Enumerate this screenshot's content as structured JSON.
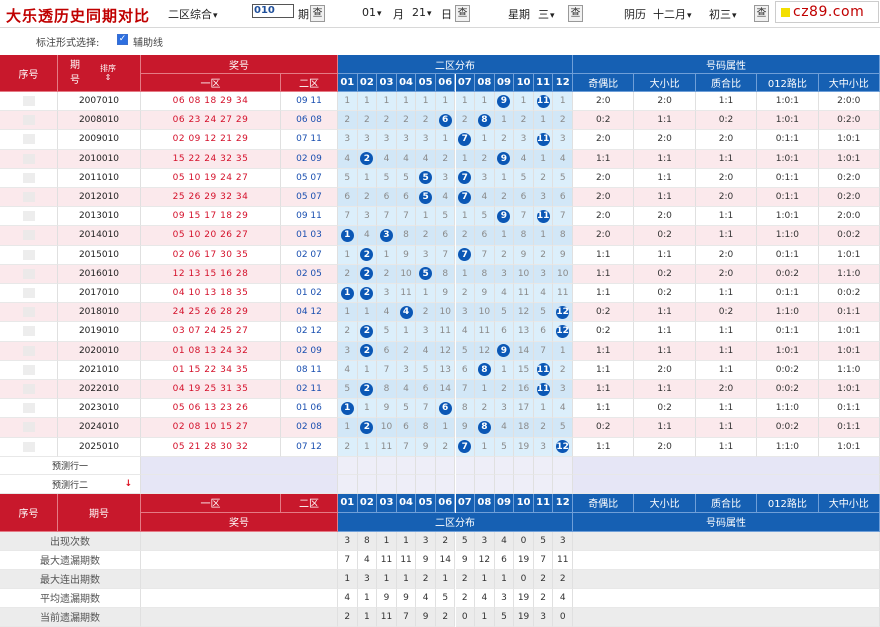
{
  "title": "大乐透历史同期对比",
  "toolbar": {
    "zone_select": "二区综合",
    "period_input": "010",
    "period_label": "期",
    "query_label": "查",
    "month_value": "01",
    "month_label": "月",
    "day_value": "21",
    "day_label": "日",
    "weekday_label": "星期",
    "weekday_value": "三",
    "lunar_label": "阴历",
    "lunar_month": "十二",
    "lunar_month_unit": "月",
    "lunar_day": "初三",
    "logo_text": "cz89.com"
  },
  "options": {
    "label": "标注形式选择:",
    "checkbox_label": "辅助线",
    "checked": true
  },
  "header": {
    "seq": "序号",
    "period": "期号",
    "sort": "排序",
    "prize": "奖号",
    "zone1": "一区",
    "zone2": "二区",
    "dist": "二区分布",
    "attr": "号码属性",
    "cols": [
      "01",
      "02",
      "03",
      "04",
      "05",
      "06",
      "07",
      "08",
      "09",
      "10",
      "11",
      "12"
    ],
    "attr_cols": [
      "奇偶比",
      "大小比",
      "质合比",
      "012路比",
      "大中小比"
    ]
  },
  "rows": [
    {
      "period": "2007010",
      "front": "06 08 18 29 34",
      "back": "09 11",
      "dist": [
        "1",
        "1",
        "1",
        "1",
        "1",
        "1",
        "1",
        "1",
        "9",
        "1",
        "11",
        "1"
      ],
      "hits": [
        9,
        11
      ],
      "attrs": [
        "2:0",
        "2:0",
        "1:1",
        "1:0:1",
        "2:0:0"
      ]
    },
    {
      "period": "2008010",
      "front": "06 23 24 27 29",
      "back": "06 08",
      "dist": [
        "2",
        "2",
        "2",
        "2",
        "2",
        "6",
        "2",
        "8",
        "1",
        "2",
        "1",
        "2"
      ],
      "hits": [
        6,
        8
      ],
      "attrs": [
        "0:2",
        "1:1",
        "0:2",
        "1:0:1",
        "0:2:0"
      ]
    },
    {
      "period": "2009010",
      "front": "02 09 12 21 29",
      "back": "07 11",
      "dist": [
        "3",
        "3",
        "3",
        "3",
        "3",
        "1",
        "7",
        "1",
        "2",
        "3",
        "11",
        "3"
      ],
      "hits": [
        7,
        11
      ],
      "attrs": [
        "2:0",
        "2:0",
        "2:0",
        "0:1:1",
        "1:0:1"
      ]
    },
    {
      "period": "2010010",
      "front": "15 22 24 32 35",
      "back": "02 09",
      "dist": [
        "4",
        "2",
        "4",
        "4",
        "4",
        "2",
        "1",
        "2",
        "9",
        "4",
        "1",
        "4"
      ],
      "hits": [
        2,
        9
      ],
      "attrs": [
        "1:1",
        "1:1",
        "1:1",
        "1:0:1",
        "1:0:1"
      ]
    },
    {
      "period": "2011010",
      "front": "05 10 19 24 27",
      "back": "05 07",
      "dist": [
        "5",
        "1",
        "5",
        "5",
        "5",
        "3",
        "7",
        "3",
        "1",
        "5",
        "2",
        "5"
      ],
      "hits": [
        5,
        7
      ],
      "attrs": [
        "2:0",
        "1:1",
        "2:0",
        "0:1:1",
        "0:2:0"
      ]
    },
    {
      "period": "2012010",
      "front": "25 26 29 32 34",
      "back": "05 07",
      "dist": [
        "6",
        "2",
        "6",
        "6",
        "5",
        "4",
        "7",
        "4",
        "2",
        "6",
        "3",
        "6"
      ],
      "hits": [
        5,
        7
      ],
      "attrs": [
        "2:0",
        "1:1",
        "2:0",
        "0:1:1",
        "0:2:0"
      ]
    },
    {
      "period": "2013010",
      "front": "09 15 17 18 29",
      "back": "09 11",
      "dist": [
        "7",
        "3",
        "7",
        "7",
        "1",
        "5",
        "1",
        "5",
        "9",
        "7",
        "11",
        "7"
      ],
      "hits": [
        9,
        11
      ],
      "attrs": [
        "2:0",
        "2:0",
        "1:1",
        "1:0:1",
        "2:0:0"
      ]
    },
    {
      "period": "2014010",
      "front": "05 10 20 26 27",
      "back": "01 03",
      "dist": [
        "1",
        "4",
        "3",
        "8",
        "2",
        "6",
        "2",
        "6",
        "1",
        "8",
        "1",
        "8"
      ],
      "hits": [
        1,
        3
      ],
      "attrs": [
        "2:0",
        "0:2",
        "1:1",
        "1:1:0",
        "0:0:2"
      ]
    },
    {
      "period": "2015010",
      "front": "02 06 17 30 35",
      "back": "02 07",
      "dist": [
        "1",
        "2",
        "1",
        "9",
        "3",
        "7",
        "7",
        "7",
        "2",
        "9",
        "2",
        "9"
      ],
      "hits": [
        2,
        7
      ],
      "attrs": [
        "1:1",
        "1:1",
        "2:0",
        "0:1:1",
        "1:0:1"
      ]
    },
    {
      "period": "2016010",
      "front": "12 13 15 16 28",
      "back": "02 05",
      "dist": [
        "2",
        "2",
        "2",
        "10",
        "5",
        "8",
        "1",
        "8",
        "3",
        "10",
        "3",
        "10"
      ],
      "hits": [
        2,
        5
      ],
      "attrs": [
        "1:1",
        "0:2",
        "2:0",
        "0:0:2",
        "1:1:0"
      ]
    },
    {
      "period": "2017010",
      "front": "04 10 13 18 35",
      "back": "01 02",
      "dist": [
        "1",
        "2",
        "3",
        "11",
        "1",
        "9",
        "2",
        "9",
        "4",
        "11",
        "4",
        "11"
      ],
      "hits": [
        1,
        2
      ],
      "attrs": [
        "1:1",
        "0:2",
        "1:1",
        "0:1:1",
        "0:0:2"
      ]
    },
    {
      "period": "2018010",
      "front": "24 25 26 28 29",
      "back": "04 12",
      "dist": [
        "1",
        "1",
        "4",
        "4",
        "2",
        "10",
        "3",
        "10",
        "5",
        "12",
        "5",
        "12"
      ],
      "hits": [
        4,
        12
      ],
      "attrs": [
        "0:2",
        "1:1",
        "0:2",
        "1:1:0",
        "0:1:1"
      ]
    },
    {
      "period": "2019010",
      "front": "03 07 24 25 27",
      "back": "02 12",
      "dist": [
        "2",
        "2",
        "5",
        "1",
        "3",
        "11",
        "4",
        "11",
        "6",
        "13",
        "6",
        "12"
      ],
      "hits": [
        2,
        12
      ],
      "attrs": [
        "0:2",
        "1:1",
        "1:1",
        "0:1:1",
        "1:0:1"
      ]
    },
    {
      "period": "2020010",
      "front": "01 08 13 24 32",
      "back": "02 09",
      "dist": [
        "3",
        "2",
        "6",
        "2",
        "4",
        "12",
        "5",
        "12",
        "9",
        "14",
        "7",
        "1"
      ],
      "hits": [
        2,
        9
      ],
      "attrs": [
        "1:1",
        "1:1",
        "1:1",
        "1:0:1",
        "1:0:1"
      ]
    },
    {
      "period": "2021010",
      "front": "01 15 22 34 35",
      "back": "08 11",
      "dist": [
        "4",
        "1",
        "7",
        "3",
        "5",
        "13",
        "6",
        "8",
        "1",
        "15",
        "11",
        "2"
      ],
      "hits": [
        8,
        11
      ],
      "attrs": [
        "1:1",
        "2:0",
        "1:1",
        "0:0:2",
        "1:1:0"
      ]
    },
    {
      "period": "2022010",
      "front": "04 19 25 31 35",
      "back": "02 11",
      "dist": [
        "5",
        "2",
        "8",
        "4",
        "6",
        "14",
        "7",
        "1",
        "2",
        "16",
        "11",
        "3"
      ],
      "hits": [
        2,
        11
      ],
      "attrs": [
        "1:1",
        "1:1",
        "2:0",
        "0:0:2",
        "1:0:1"
      ]
    },
    {
      "period": "2023010",
      "front": "05 06 13 23 26",
      "back": "01 06",
      "dist": [
        "1",
        "1",
        "9",
        "5",
        "7",
        "6",
        "8",
        "2",
        "3",
        "17",
        "1",
        "4"
      ],
      "hits": [
        1,
        6
      ],
      "attrs": [
        "1:1",
        "0:2",
        "1:1",
        "1:1:0",
        "0:1:1"
      ]
    },
    {
      "period": "2024010",
      "front": "02 08 10 15 27",
      "back": "02 08",
      "dist": [
        "1",
        "2",
        "10",
        "6",
        "8",
        "1",
        "9",
        "8",
        "4",
        "18",
        "2",
        "5"
      ],
      "hits": [
        2,
        8
      ],
      "attrs": [
        "0:2",
        "1:1",
        "1:1",
        "0:0:2",
        "0:1:1"
      ]
    },
    {
      "period": "2025010",
      "front": "05 21 28 30 32",
      "back": "07 12",
      "dist": [
        "2",
        "1",
        "11",
        "7",
        "9",
        "2",
        "7",
        "1",
        "5",
        "19",
        "3",
        "12"
      ],
      "hits": [
        7,
        12
      ],
      "attrs": [
        "1:1",
        "2:0",
        "1:1",
        "1:1:0",
        "1:0:1"
      ]
    }
  ],
  "predict": [
    "预测行一",
    "预测行二"
  ],
  "stats": [
    {
      "label": "出现次数",
      "values": [
        "3",
        "8",
        "1",
        "1",
        "3",
        "2",
        "5",
        "3",
        "4",
        "0",
        "5",
        "3"
      ]
    },
    {
      "label": "最大遗漏期数",
      "values": [
        "7",
        "4",
        "11",
        "11",
        "9",
        "14",
        "9",
        "12",
        "6",
        "19",
        "7",
        "11"
      ]
    },
    {
      "label": "最大连出期数",
      "values": [
        "1",
        "3",
        "1",
        "1",
        "2",
        "1",
        "2",
        "1",
        "1",
        "0",
        "2",
        "2"
      ]
    },
    {
      "label": "平均遗漏期数",
      "values": [
        "4",
        "1",
        "9",
        "9",
        "4",
        "5",
        "2",
        "4",
        "3",
        "19",
        "2",
        "4"
      ]
    },
    {
      "label": "当前遗漏期数",
      "values": [
        "2",
        "1",
        "11",
        "7",
        "9",
        "2",
        "0",
        "1",
        "5",
        "19",
        "3",
        "0"
      ]
    }
  ]
}
